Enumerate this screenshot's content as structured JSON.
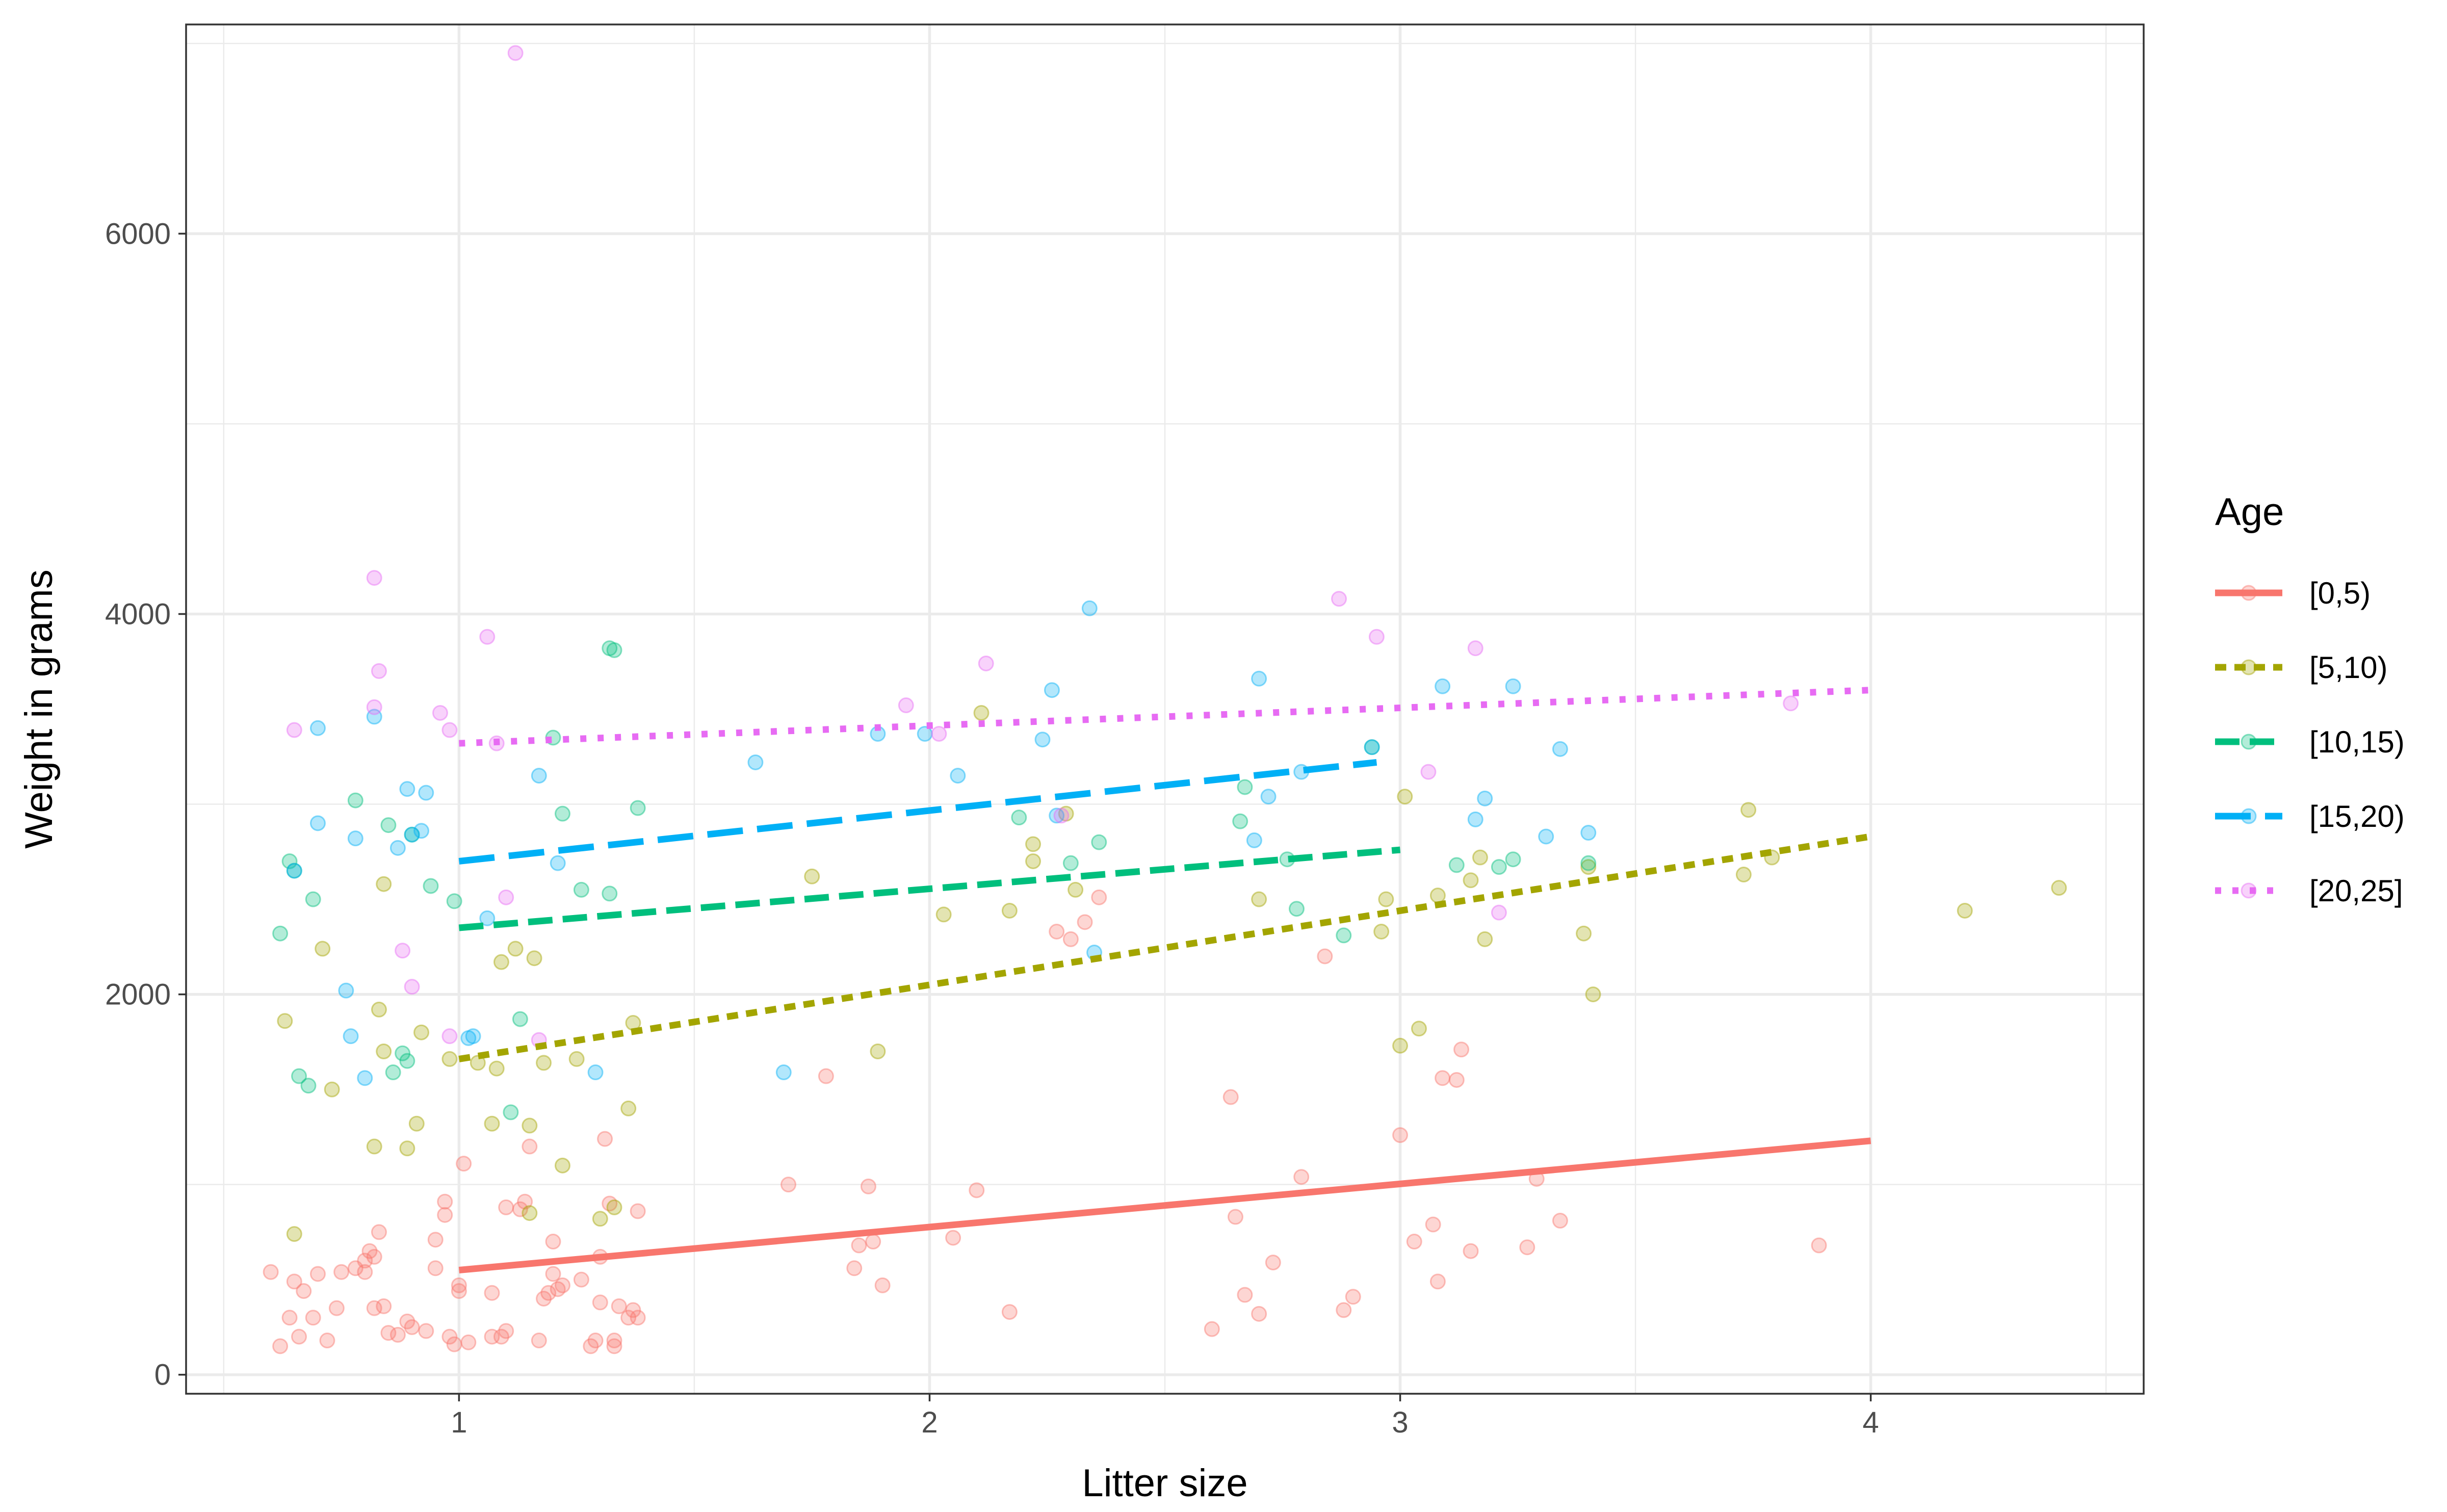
{
  "chart_data": {
    "type": "scatter",
    "title": "",
    "xlabel": "Litter size",
    "ylabel": "Weight in grams",
    "xlim": [
      0.42,
      4.58
    ],
    "ylim": [
      -100,
      7100
    ],
    "x_ticks": [
      1,
      2,
      3,
      4
    ],
    "x_tick_labels": [
      "1",
      "2",
      "3",
      "4"
    ],
    "y_ticks": [
      0,
      2000,
      4000,
      6000
    ],
    "y_tick_labels": [
      "0",
      "2000",
      "4000",
      "6000"
    ],
    "x_minor_gridlines": [
      0.5,
      1.5,
      2.5,
      3.5,
      4.5
    ],
    "y_minor_gridlines": [
      1000,
      3000,
      5000,
      7000
    ],
    "grid": true,
    "legend": {
      "title": "Age",
      "position": "right"
    },
    "series": [
      {
        "name": "[0,5)",
        "color": "#F8766D",
        "line_style": "solid",
        "fit": {
          "x": [
            1,
            4
          ],
          "y": [
            550,
            1230
          ]
        },
        "points": [
          [
            0.6,
            540
          ],
          [
            0.62,
            150
          ],
          [
            0.64,
            300
          ],
          [
            0.65,
            490
          ],
          [
            0.66,
            200
          ],
          [
            0.67,
            440
          ],
          [
            0.69,
            300
          ],
          [
            0.7,
            530
          ],
          [
            0.72,
            180
          ],
          [
            0.74,
            350
          ],
          [
            0.75,
            540
          ],
          [
            0.78,
            560
          ],
          [
            0.8,
            600
          ],
          [
            0.8,
            540
          ],
          [
            0.81,
            650
          ],
          [
            0.82,
            620
          ],
          [
            0.82,
            350
          ],
          [
            0.83,
            750
          ],
          [
            0.84,
            360
          ],
          [
            0.85,
            220
          ],
          [
            0.87,
            210
          ],
          [
            0.89,
            280
          ],
          [
            0.9,
            250
          ],
          [
            0.93,
            230
          ],
          [
            0.95,
            560
          ],
          [
            0.95,
            710
          ],
          [
            0.97,
            910
          ],
          [
            0.97,
            840
          ],
          [
            0.98,
            200
          ],
          [
            0.99,
            160
          ],
          [
            1.0,
            440
          ],
          [
            1.0,
            470
          ],
          [
            1.01,
            1110
          ],
          [
            1.02,
            170
          ],
          [
            1.07,
            430
          ],
          [
            1.07,
            200
          ],
          [
            1.09,
            200
          ],
          [
            1.1,
            230
          ],
          [
            1.1,
            880
          ],
          [
            1.13,
            870
          ],
          [
            1.14,
            910
          ],
          [
            1.15,
            1200
          ],
          [
            1.17,
            180
          ],
          [
            1.18,
            400
          ],
          [
            1.19,
            430
          ],
          [
            1.2,
            700
          ],
          [
            1.2,
            530
          ],
          [
            1.21,
            450
          ],
          [
            1.22,
            470
          ],
          [
            1.26,
            500
          ],
          [
            1.28,
            150
          ],
          [
            1.29,
            180
          ],
          [
            1.3,
            380
          ],
          [
            1.3,
            620
          ],
          [
            1.31,
            1240
          ],
          [
            1.32,
            900
          ],
          [
            1.33,
            150
          ],
          [
            1.33,
            180
          ],
          [
            1.34,
            360
          ],
          [
            1.36,
            300
          ],
          [
            1.37,
            340
          ],
          [
            1.38,
            860
          ],
          [
            1.38,
            300
          ],
          [
            1.7,
            1000
          ],
          [
            1.78,
            1570
          ],
          [
            1.84,
            560
          ],
          [
            1.85,
            680
          ],
          [
            1.87,
            990
          ],
          [
            1.88,
            700
          ],
          [
            1.9,
            470
          ],
          [
            2.05,
            720
          ],
          [
            2.1,
            970
          ],
          [
            2.17,
            330
          ],
          [
            2.27,
            2330
          ],
          [
            2.3,
            2290
          ],
          [
            2.33,
            2380
          ],
          [
            2.36,
            2510
          ],
          [
            2.6,
            240
          ],
          [
            2.64,
            1460
          ],
          [
            2.65,
            830
          ],
          [
            2.67,
            420
          ],
          [
            2.7,
            320
          ],
          [
            2.73,
            590
          ],
          [
            2.79,
            1040
          ],
          [
            2.84,
            2200
          ],
          [
            2.88,
            340
          ],
          [
            2.9,
            410
          ],
          [
            3.0,
            1260
          ],
          [
            3.03,
            700
          ],
          [
            3.07,
            790
          ],
          [
            3.08,
            490
          ],
          [
            3.09,
            1560
          ],
          [
            3.12,
            1550
          ],
          [
            3.13,
            1710
          ],
          [
            3.15,
            650
          ],
          [
            3.27,
            670
          ],
          [
            3.29,
            1030
          ],
          [
            3.34,
            810
          ],
          [
            3.89,
            680
          ]
        ]
      },
      {
        "name": "[5,10)",
        "color": "#A3A500",
        "line_style": "short-dash",
        "fit": {
          "x": [
            1,
            4
          ],
          "y": [
            1660,
            2830
          ]
        },
        "points": [
          [
            0.63,
            1860
          ],
          [
            0.65,
            740
          ],
          [
            0.71,
            2240
          ],
          [
            0.73,
            1500
          ],
          [
            0.82,
            1200
          ],
          [
            0.83,
            1920
          ],
          [
            0.84,
            1700
          ],
          [
            0.84,
            2580
          ],
          [
            0.89,
            1190
          ],
          [
            0.91,
            1320
          ],
          [
            0.92,
            1800
          ],
          [
            0.98,
            1660
          ],
          [
            1.04,
            1640
          ],
          [
            1.07,
            1320
          ],
          [
            1.08,
            1610
          ],
          [
            1.09,
            2170
          ],
          [
            1.12,
            2240
          ],
          [
            1.15,
            1310
          ],
          [
            1.15,
            850
          ],
          [
            1.16,
            2190
          ],
          [
            1.18,
            1640
          ],
          [
            1.22,
            1100
          ],
          [
            1.25,
            1660
          ],
          [
            1.3,
            820
          ],
          [
            1.33,
            880
          ],
          [
            1.36,
            1400
          ],
          [
            1.37,
            1850
          ],
          [
            1.75,
            2620
          ],
          [
            1.89,
            1700
          ],
          [
            2.03,
            2420
          ],
          [
            2.11,
            3480
          ],
          [
            2.17,
            2440
          ],
          [
            2.22,
            2700
          ],
          [
            2.22,
            2790
          ],
          [
            2.29,
            2950
          ],
          [
            2.31,
            2550
          ],
          [
            2.7,
            2500
          ],
          [
            2.96,
            2330
          ],
          [
            2.97,
            2500
          ],
          [
            3.0,
            1730
          ],
          [
            3.01,
            3040
          ],
          [
            3.04,
            1820
          ],
          [
            3.08,
            2520
          ],
          [
            3.15,
            2600
          ],
          [
            3.17,
            2720
          ],
          [
            3.18,
            2290
          ],
          [
            3.39,
            2320
          ],
          [
            3.4,
            2670
          ],
          [
            3.41,
            2000
          ],
          [
            3.73,
            2630
          ],
          [
            3.74,
            2970
          ],
          [
            3.79,
            2720
          ],
          [
            4.2,
            2440
          ],
          [
            4.4,
            2560
          ]
        ]
      },
      {
        "name": "[10,15)",
        "color": "#00BF7D",
        "line_style": "dash",
        "fit": {
          "x": [
            1,
            3
          ],
          "y": [
            2350,
            2760
          ]
        },
        "points": [
          [
            0.62,
            2320
          ],
          [
            0.64,
            2700
          ],
          [
            0.65,
            2650
          ],
          [
            0.66,
            1570
          ],
          [
            0.68,
            1520
          ],
          [
            0.69,
            2500
          ],
          [
            0.78,
            3020
          ],
          [
            0.85,
            2890
          ],
          [
            0.86,
            1590
          ],
          [
            0.88,
            1690
          ],
          [
            0.89,
            1650
          ],
          [
            0.9,
            2840
          ],
          [
            0.94,
            2570
          ],
          [
            0.99,
            2490
          ],
          [
            1.11,
            1380
          ],
          [
            1.13,
            1870
          ],
          [
            1.2,
            3350
          ],
          [
            1.22,
            2950
          ],
          [
            1.26,
            2550
          ],
          [
            1.32,
            2530
          ],
          [
            1.32,
            3820
          ],
          [
            1.33,
            3810
          ],
          [
            1.38,
            2980
          ],
          [
            2.19,
            2930
          ],
          [
            2.3,
            2690
          ],
          [
            2.36,
            2800
          ],
          [
            2.66,
            2910
          ],
          [
            2.67,
            3090
          ],
          [
            2.76,
            2710
          ],
          [
            2.78,
            2450
          ],
          [
            2.88,
            2310
          ],
          [
            2.94,
            3300
          ],
          [
            3.12,
            2680
          ],
          [
            3.21,
            2670
          ],
          [
            3.24,
            2710
          ],
          [
            3.4,
            2690
          ]
        ]
      },
      {
        "name": "[15,20)",
        "color": "#00B0F6",
        "line_style": "long-dash",
        "fit": {
          "x": [
            1,
            2.95
          ],
          "y": [
            2700,
            3220
          ]
        },
        "points": [
          [
            0.65,
            2650
          ],
          [
            0.7,
            3400
          ],
          [
            0.7,
            2900
          ],
          [
            0.76,
            2020
          ],
          [
            0.77,
            1780
          ],
          [
            0.78,
            2820
          ],
          [
            0.8,
            1560
          ],
          [
            0.82,
            3460
          ],
          [
            0.87,
            2770
          ],
          [
            0.89,
            3080
          ],
          [
            0.9,
            2840
          ],
          [
            0.92,
            2860
          ],
          [
            0.93,
            3060
          ],
          [
            1.02,
            1770
          ],
          [
            1.03,
            1780
          ],
          [
            1.06,
            2400
          ],
          [
            1.17,
            3150
          ],
          [
            1.21,
            2690
          ],
          [
            1.29,
            1590
          ],
          [
            1.63,
            3220
          ],
          [
            1.69,
            1590
          ],
          [
            1.89,
            3370
          ],
          [
            1.99,
            3370
          ],
          [
            2.06,
            3150
          ],
          [
            2.24,
            3340
          ],
          [
            2.26,
            3600
          ],
          [
            2.27,
            2940
          ],
          [
            2.34,
            4030
          ],
          [
            2.35,
            2220
          ],
          [
            2.69,
            2810
          ],
          [
            2.7,
            3660
          ],
          [
            2.72,
            3040
          ],
          [
            2.79,
            3170
          ],
          [
            2.94,
            3300
          ],
          [
            3.09,
            3620
          ],
          [
            3.16,
            2920
          ],
          [
            3.18,
            3030
          ],
          [
            3.24,
            3620
          ],
          [
            3.31,
            2830
          ],
          [
            3.34,
            3290
          ],
          [
            3.4,
            2850
          ]
        ]
      },
      {
        "name": "[20,25]",
        "color": "#E76BF3",
        "line_style": "dot",
        "fit": {
          "x": [
            1,
            4
          ],
          "y": [
            3320,
            3600
          ]
        },
        "points": [
          [
            0.65,
            3390
          ],
          [
            0.82,
            4190
          ],
          [
            0.82,
            3510
          ],
          [
            0.83,
            3700
          ],
          [
            0.88,
            2230
          ],
          [
            0.9,
            2040
          ],
          [
            0.96,
            3480
          ],
          [
            0.98,
            3390
          ],
          [
            0.98,
            1780
          ],
          [
            1.06,
            3880
          ],
          [
            1.08,
            3320
          ],
          [
            1.1,
            2510
          ],
          [
            1.12,
            6950
          ],
          [
            1.17,
            1760
          ],
          [
            1.95,
            3520
          ],
          [
            2.02,
            3370
          ],
          [
            2.12,
            3740
          ],
          [
            2.28,
            2940
          ],
          [
            2.87,
            4080
          ],
          [
            2.95,
            3880
          ],
          [
            3.06,
            3170
          ],
          [
            3.16,
            3820
          ],
          [
            3.21,
            2430
          ],
          [
            3.83,
            3530
          ]
        ]
      }
    ]
  }
}
